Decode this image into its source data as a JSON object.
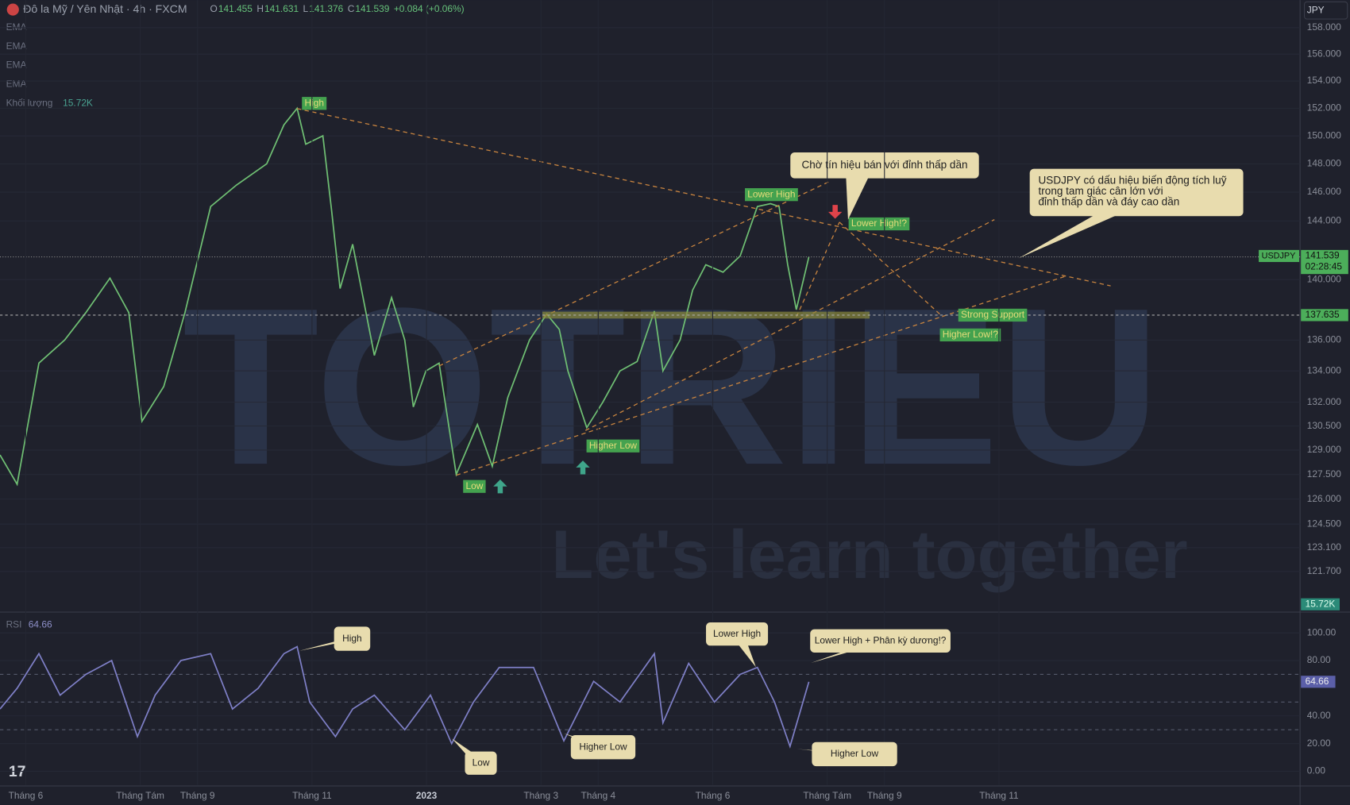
{
  "header": {
    "symbol": "Đô la Mỹ / Yên Nhật · 4h · FXCM",
    "ohlc": [
      {
        "label": "O",
        "value": 141.455
      },
      {
        "label": "H",
        "value": 141.631
      },
      {
        "label": "L",
        "value": 141.376
      },
      {
        "label": "C",
        "value": 141.539
      }
    ],
    "change": "+0.084 (+0.06%)",
    "currency": "JPY"
  },
  "indicators": {
    "ema": [
      "EMA",
      "EMA",
      "EMA",
      "EMA"
    ],
    "volume_label": "Khối lượng",
    "volume_value": "15.72K",
    "rsi_label": "RSI",
    "rsi_value": 64.66
  },
  "watermark": {
    "brand": "TOTRIEU",
    "slogan": "Let's learn together"
  },
  "chart_data": [
    {
      "type": "line",
      "log_scale": true,
      "x": [
        -0.45,
        -0.15,
        0.23,
        0.68,
        1.05,
        1.47,
        1.8,
        2.03,
        2.41,
        2.78,
        3.23,
        3.68,
        4.21,
        4.51,
        4.74,
        4.89,
        5.19,
        5.34,
        5.49,
        5.71,
        6.09,
        6.39,
        6.62,
        6.77,
        6.99,
        7.22,
        7.52,
        7.89,
        8.15,
        8.42,
        8.8,
        9.1,
        9.32,
        9.47,
        9.8,
        10.08,
        10.38,
        10.68,
        10.98,
        11.13,
        11.43,
        11.65,
        11.88,
        12.18,
        12.48,
        12.78,
        13.01,
        13.16,
        13.31,
        13.46,
        13.68
      ],
      "series": [
        {
          "name": "USDJPY",
          "color": "#6fbf73",
          "values": [
            128.7,
            126.9,
            134.5,
            136.0,
            137.8,
            140.1,
            137.8,
            130.8,
            133.0,
            137.8,
            145.0,
            146.5,
            148.0,
            150.8,
            152.0,
            149.4,
            150.0,
            144.8,
            139.4,
            142.4,
            135.0,
            138.8,
            136.0,
            131.7,
            134.0,
            134.5,
            127.5,
            130.6,
            128.0,
            132.3,
            136.0,
            137.7,
            136.7,
            134.0,
            130.4,
            132.0,
            134.0,
            134.6,
            137.9,
            134.0,
            136.0,
            139.3,
            141.0,
            140.5,
            141.6,
            145.0,
            145.2,
            145.0,
            141.0,
            138.0,
            141.539
          ]
        }
      ],
      "xlim": [
        -0.45,
        22.26
      ],
      "ylim": [
        119.4,
        160.1
      ],
      "yticks": [
        {
          "value": 158,
          "label": "158.000"
        },
        {
          "value": 156,
          "label": "156.000"
        },
        {
          "value": 154,
          "label": "154.000"
        },
        {
          "value": 152,
          "label": "152.000"
        },
        {
          "value": 150,
          "label": "150.000"
        },
        {
          "value": 148,
          "label": "148.000"
        },
        {
          "value": 146,
          "label": "146.000"
        },
        {
          "value": 144,
          "label": "144.000"
        },
        {
          "value": 140,
          "label": "140.000"
        },
        {
          "value": 136,
          "label": "136.000"
        },
        {
          "value": 134,
          "label": "134.000"
        },
        {
          "value": 132,
          "label": "132.000"
        },
        {
          "value": 130.5,
          "label": "130.500"
        },
        {
          "value": 129,
          "label": "129.000"
        },
        {
          "value": 127.5,
          "label": "127.500"
        },
        {
          "value": 126,
          "label": "126.000"
        },
        {
          "value": 124.5,
          "label": "124.500"
        },
        {
          "value": 123.1,
          "label": "123.100"
        },
        {
          "value": 121.7,
          "label": "121.700"
        }
      ],
      "last_price": {
        "label": "USDJPY",
        "value": 141.539,
        "countdown": "02:28:45"
      },
      "support": {
        "value": 137.635
      },
      "volume_last": "15.72K",
      "annotations": [
        "High",
        "Lower High",
        "Lower High!?",
        "Higher Low",
        "Low",
        "Strong Support",
        "Higher Low!?"
      ],
      "callouts": [
        {
          "lines": [
            "Chờ tín hiệu bán với đỉnh thấp dần"
          ]
        },
        {
          "lines": [
            "USDJPY có dấu hiệu biến động tích luỹ",
            "trong tam giác cân lớn với",
            "đỉnh thấp dần và đáy cao dần"
          ]
        }
      ]
    },
    {
      "type": "line",
      "x": [
        -0.45,
        -0.15,
        0.23,
        0.6,
        1.05,
        1.5,
        1.95,
        2.26,
        2.71,
        3.23,
        3.61,
        4.06,
        4.51,
        4.74,
        4.96,
        5.41,
        5.71,
        6.09,
        6.62,
        7.07,
        7.44,
        7.82,
        8.27,
        8.87,
        9.4,
        9.92,
        10.38,
        10.98,
        11.13,
        11.58,
        12.03,
        12.48,
        12.78,
        13.08,
        13.35,
        13.68
      ],
      "series": [
        {
          "name": "RSI",
          "color": "#7e7fc6",
          "values": [
            45,
            60,
            85,
            55,
            70,
            80,
            25,
            55,
            80,
            85,
            45,
            60,
            85,
            90,
            50,
            25,
            45,
            55,
            30,
            55,
            20,
            50,
            75,
            75,
            22,
            65,
            50,
            85,
            35,
            78,
            50,
            70,
            75,
            50,
            18,
            64.66
          ]
        }
      ],
      "xlim": [
        -0.45,
        22.26
      ],
      "ylim": [
        -10,
        114.4
      ],
      "yticks": [
        {
          "value": 100,
          "label": "100.00"
        },
        {
          "value": 80,
          "label": "80.00"
        },
        {
          "value": 40,
          "label": "40.00"
        },
        {
          "value": 20,
          "label": "20.00"
        },
        {
          "value": 0,
          "label": "0.00"
        }
      ],
      "levels": [
        70,
        50,
        30
      ],
      "xticks": [
        {
          "value": 0,
          "label": "Tháng 6"
        },
        {
          "value": 2,
          "label": "Tháng Tám"
        },
        {
          "value": 3,
          "label": "Tháng 9"
        },
        {
          "value": 5,
          "label": "Tháng 11"
        },
        {
          "value": 7,
          "label": "2023"
        },
        {
          "value": 9,
          "label": "Tháng 3"
        },
        {
          "value": 10,
          "label": "Tháng 4"
        },
        {
          "value": 12,
          "label": "Tháng 6"
        },
        {
          "value": 14,
          "label": "Tháng Tám"
        },
        {
          "value": 15,
          "label": "Tháng 9"
        },
        {
          "value": 17,
          "label": "Tháng 11"
        }
      ],
      "annotations": [
        "High",
        "Low",
        "Higher Low",
        "Lower High",
        "Lower High + Phân kỳ dương!?",
        "Higher Low"
      ]
    }
  ]
}
